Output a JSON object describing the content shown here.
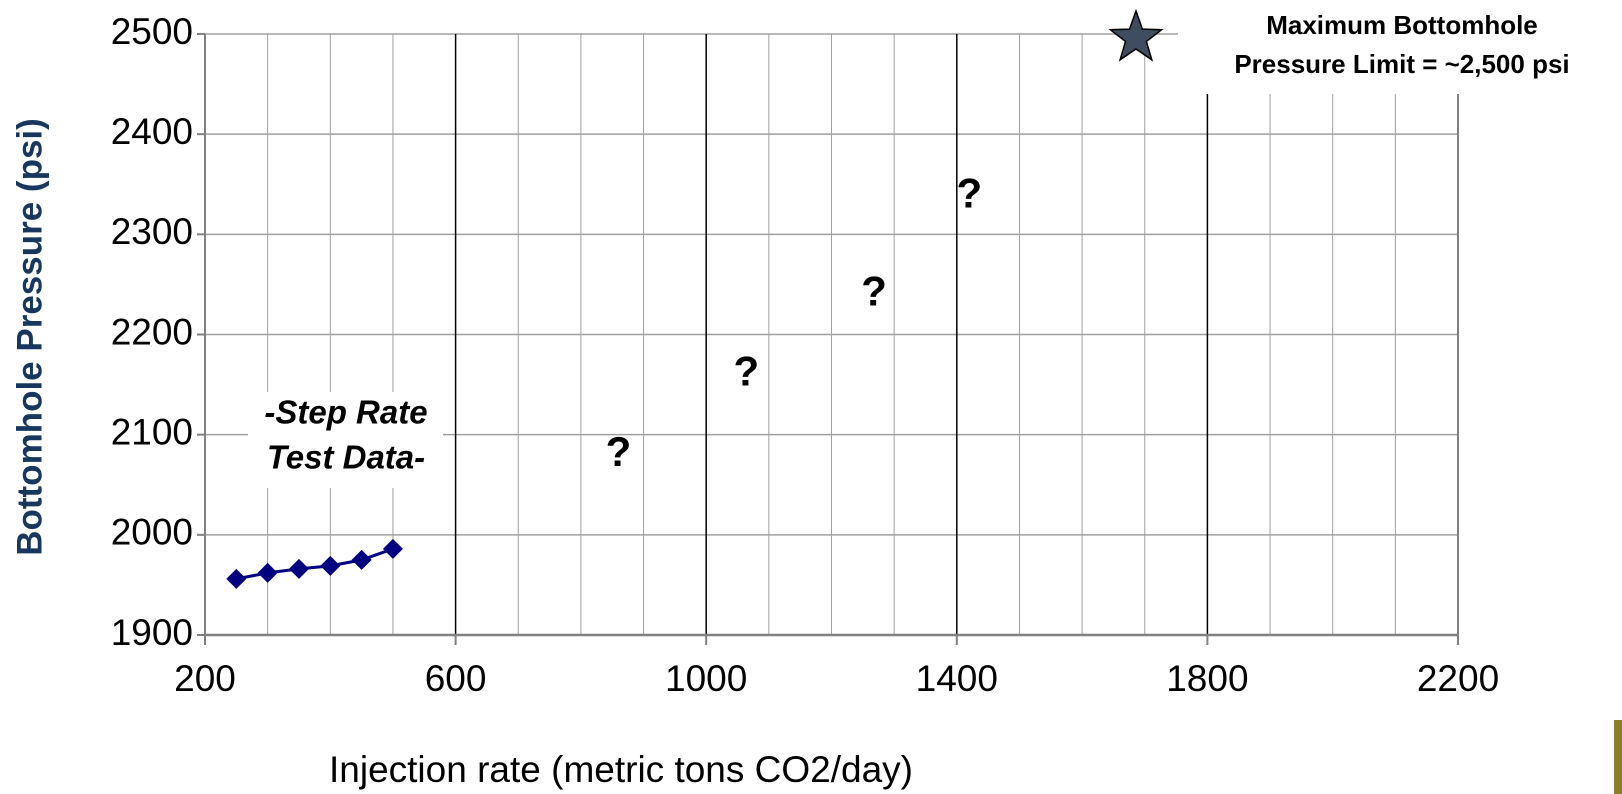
{
  "chart_data": {
    "type": "line",
    "x_label": "Injection rate (metric tons CO2/day)",
    "y_label": "Bottomhole Pressure (psi)",
    "x": [
      250,
      300,
      350,
      400,
      450,
      500
    ],
    "series": [
      {
        "name": "Step Rate Test Data",
        "color": "#000080",
        "values": [
          1956,
          1962,
          1966,
          1969,
          1975,
          1986
        ]
      }
    ],
    "series_label": [
      "-Step Rate",
      "Test Data-"
    ],
    "xlim": [
      200,
      2200
    ],
    "xticks": [
      200,
      600,
      1000,
      1400,
      1800,
      2200
    ],
    "x_minor_grid": [
      300,
      400,
      500,
      700,
      800,
      900,
      1100,
      1200,
      1300,
      1500,
      1600,
      1700,
      1900,
      2000,
      2100
    ],
    "ylim": [
      1900,
      2500
    ],
    "yticks": [
      1900,
      2000,
      2100,
      2200,
      2300,
      2400,
      2500
    ],
    "grid": true,
    "annotations": [
      {
        "text": "?",
        "x": 860,
        "y": 2080
      },
      {
        "text": "?",
        "x": 1064,
        "y": 2160
      },
      {
        "text": "?",
        "x": 1268,
        "y": 2240
      },
      {
        "text": "?",
        "x": 1420,
        "y": 2338
      }
    ],
    "limit": {
      "x": 1686,
      "y": 2500,
      "color": "#3f4d5e",
      "label": [
        "Maximum Bottomhole",
        "Pressure Limit = ~2,500 psi"
      ]
    }
  }
}
